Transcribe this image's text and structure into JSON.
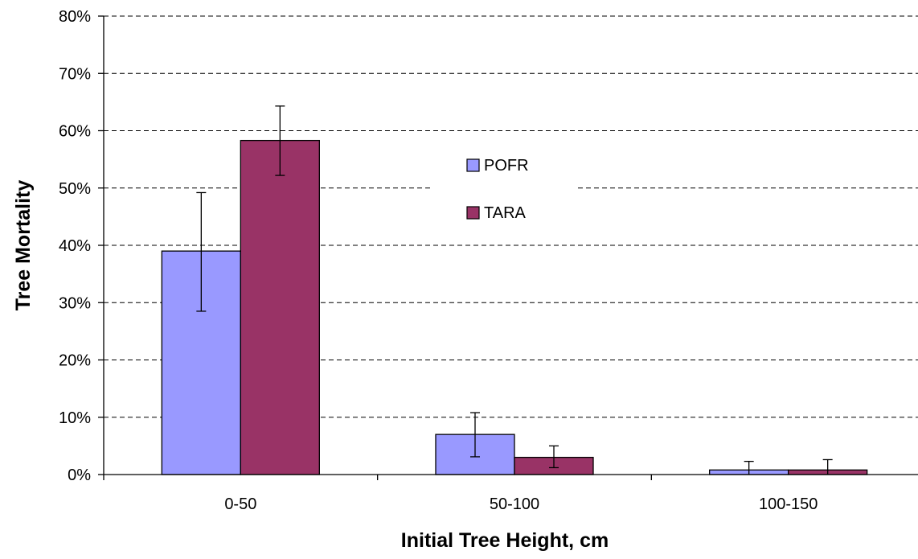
{
  "chart_data": {
    "type": "bar",
    "title": "",
    "xlabel": "Initial Tree Height, cm",
    "ylabel": "Tree Mortality",
    "categories": [
      "0-50",
      "50-100",
      "100-150"
    ],
    "series": [
      {
        "name": "POFR",
        "color": "#9999ff",
        "values": [
          0.39,
          0.07,
          0.008
        ],
        "error_low": [
          0.285,
          0.031,
          0.0
        ],
        "error_high": [
          0.492,
          0.108,
          0.023
        ]
      },
      {
        "name": "TARA",
        "color": "#993366",
        "values": [
          0.583,
          0.03,
          0.008
        ],
        "error_low": [
          0.522,
          0.012,
          0.0
        ],
        "error_high": [
          0.643,
          0.05,
          0.026
        ]
      }
    ],
    "ylim": [
      0,
      0.8
    ],
    "y_ticks": [
      0,
      0.1,
      0.2,
      0.3,
      0.4,
      0.5,
      0.6,
      0.7,
      0.8
    ],
    "y_tick_labels": [
      "0%",
      "10%",
      "20%",
      "30%",
      "40%",
      "50%",
      "60%",
      "70%",
      "80%"
    ],
    "gridlines": "horizontal dashed",
    "legend_position": "upper center, inside plot"
  }
}
